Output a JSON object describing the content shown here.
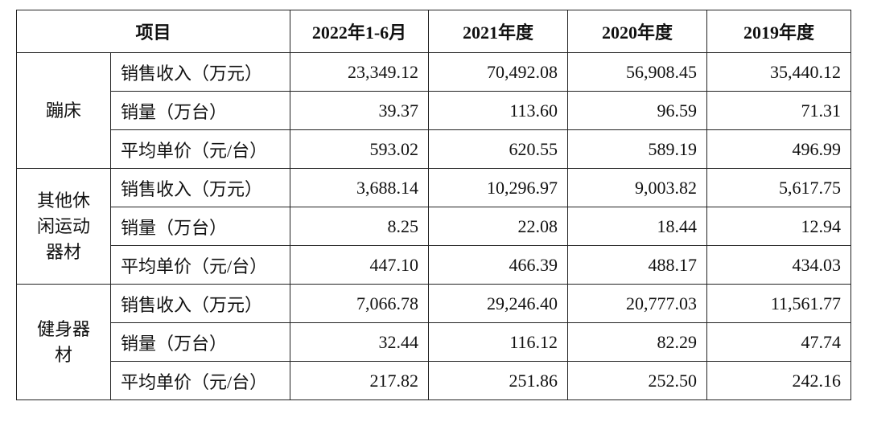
{
  "table": {
    "header": [
      "项目",
      "2022年1-6月",
      "2021年度",
      "2020年度",
      "2019年度"
    ],
    "groups": [
      {
        "category": "蹦床",
        "rows": [
          [
            "销售收入（万元）",
            "23,349.12",
            "70,492.08",
            "56,908.45",
            "35,440.12"
          ],
          [
            "销量（万台）",
            "39.37",
            "113.60",
            "96.59",
            "71.31"
          ],
          [
            "平均单价（元/台）",
            "593.02",
            "620.55",
            "589.19",
            "496.99"
          ]
        ]
      },
      {
        "category": "其他休闲运动器材",
        "rows": [
          [
            "销售收入（万元）",
            "3,688.14",
            "10,296.97",
            "9,003.82",
            "5,617.75"
          ],
          [
            "销量（万台）",
            "8.25",
            "22.08",
            "18.44",
            "12.94"
          ],
          [
            "平均单价（元/台）",
            "447.10",
            "466.39",
            "488.17",
            "434.03"
          ]
        ]
      },
      {
        "category": "健身器材",
        "rows": [
          [
            "销售收入（万元）",
            "7,066.78",
            "29,246.40",
            "20,777.03",
            "11,561.77"
          ],
          [
            "销量（万台）",
            "32.44",
            "116.12",
            "82.29",
            "47.74"
          ],
          [
            "平均单价（元/台）",
            "217.82",
            "251.86",
            "252.50",
            "242.16"
          ]
        ]
      }
    ]
  }
}
